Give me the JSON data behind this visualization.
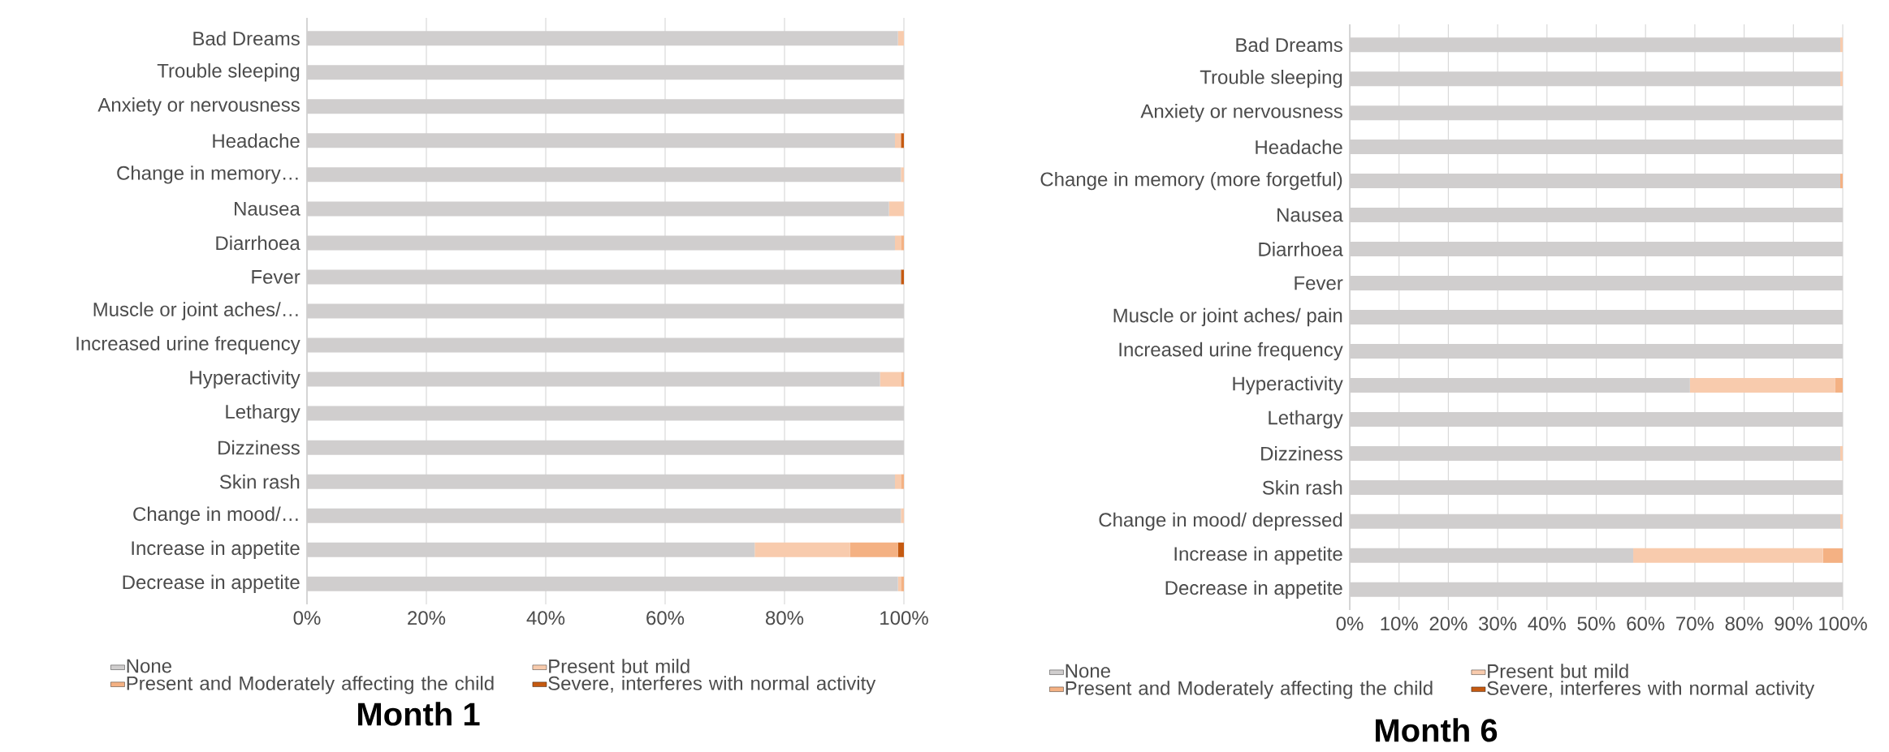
{
  "chart_data": [
    {
      "type": "bar",
      "orientation": "horizontal",
      "stacked": true,
      "title": "Month 1",
      "categories": [
        "Bad Dreams",
        "Trouble sleeping",
        "Anxiety or nervousness",
        "Headache",
        "Change in memory…",
        "Nausea",
        "Diarrhoea",
        "Fever",
        "Muscle or joint aches/…",
        "Increased urine frequency",
        "Hyperactivity",
        "Lethargy",
        "Dizziness",
        "Skin rash",
        "Change in mood/…",
        "Increase in appetite",
        "Decrease in appetite"
      ],
      "series": [
        {
          "name": "None",
          "color": "#d0cece",
          "values": [
            99,
            100,
            100,
            98.5,
            99.5,
            97.5,
            98.5,
            99.5,
            100,
            100,
            96,
            100,
            100,
            98.5,
            99.5,
            75,
            99
          ]
        },
        {
          "name": "Present but mild",
          "color": "#f8cbad",
          "values": [
            1,
            0,
            0,
            1,
            0.5,
            2.5,
            1,
            0,
            0,
            0,
            3.5,
            0,
            0,
            1,
            0.5,
            16,
            0.5
          ]
        },
        {
          "name": "Present and Moderately affecting the child",
          "color": "#f4b183",
          "values": [
            0,
            0,
            0,
            0,
            0,
            0,
            0.5,
            0,
            0,
            0,
            0.5,
            0,
            0,
            0.5,
            0,
            8,
            0.5
          ]
        },
        {
          "name": "Severe, interferes with normal activity",
          "color": "#c55a11",
          "values": [
            0,
            0,
            0,
            0.5,
            0,
            0,
            0,
            0.5,
            0,
            0,
            0,
            0,
            0,
            0,
            0,
            1,
            0
          ]
        }
      ],
      "xlim": [
        0,
        100
      ],
      "xticks": [
        {
          "value": 0,
          "label": "0%"
        },
        {
          "value": 20,
          "label": "20%"
        },
        {
          "value": 40,
          "label": "40%"
        },
        {
          "value": 60,
          "label": "60%"
        },
        {
          "value": 80,
          "label": "80%"
        },
        {
          "value": 100,
          "label": "100%"
        }
      ],
      "grid": "x",
      "legend": "bottom"
    },
    {
      "type": "bar",
      "orientation": "horizontal",
      "stacked": true,
      "title": "Month 6",
      "categories": [
        "Bad Dreams",
        "Trouble sleeping",
        "Anxiety or nervousness",
        "Headache",
        "Change in memory (more forgetful)",
        "Nausea",
        "Diarrhoea",
        "Fever",
        "Muscle or joint aches/ pain",
        "Increased urine frequency",
        "Hyperactivity",
        "Lethargy",
        "Dizziness",
        "Skin rash",
        "Change in mood/ depressed",
        "Increase in appetite",
        "Decrease in appetite"
      ],
      "series": [
        {
          "name": "None",
          "color": "#d0cece",
          "values": [
            99.5,
            99.5,
            100,
            100,
            99.5,
            100,
            100,
            100,
            100,
            100,
            69,
            100,
            99.5,
            100,
            99.5,
            57.5,
            100
          ]
        },
        {
          "name": "Present but mild",
          "color": "#f8cbad",
          "values": [
            0.5,
            0.5,
            0,
            0,
            0,
            0,
            0,
            0,
            0,
            0,
            29.5,
            0,
            0.5,
            0,
            0.5,
            38.5,
            0
          ]
        },
        {
          "name": "Present and Moderately affecting the child",
          "color": "#f4b183",
          "values": [
            0,
            0,
            0,
            0,
            0.5,
            0,
            0,
            0,
            0,
            0,
            1.5,
            0,
            0,
            0,
            0,
            4,
            0
          ]
        },
        {
          "name": "Severe, interferes with normal activity",
          "color": "#c55a11",
          "values": [
            0,
            0,
            0,
            0,
            0,
            0,
            0,
            0,
            0,
            0,
            0,
            0,
            0,
            0,
            0,
            0,
            0
          ]
        }
      ],
      "xlim": [
        0,
        100
      ],
      "xticks": [
        {
          "value": 0,
          "label": "0%"
        },
        {
          "value": 10,
          "label": "10%"
        },
        {
          "value": 20,
          "label": "20%"
        },
        {
          "value": 30,
          "label": "30%"
        },
        {
          "value": 40,
          "label": "40%"
        },
        {
          "value": 50,
          "label": "50%"
        },
        {
          "value": 60,
          "label": "60%"
        },
        {
          "value": 70,
          "label": "70%"
        },
        {
          "value": 80,
          "label": "80%"
        },
        {
          "value": 90,
          "label": "90%"
        },
        {
          "value": 100,
          "label": "100%"
        }
      ],
      "grid": "x",
      "legend": "bottom"
    }
  ]
}
